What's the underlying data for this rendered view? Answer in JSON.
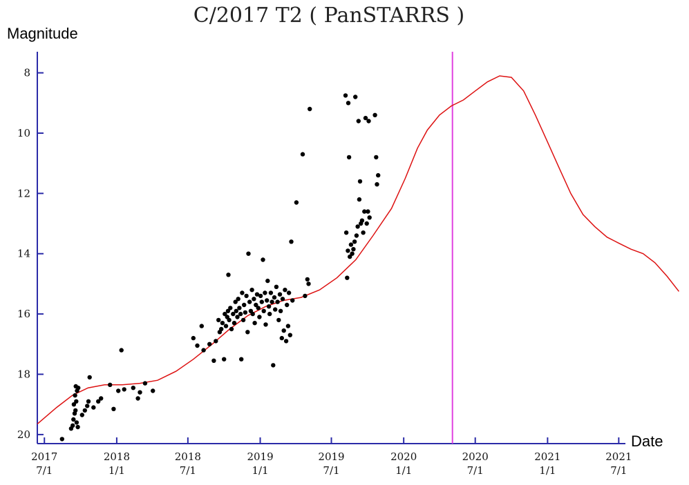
{
  "chart_data": {
    "type": "scatter",
    "title": "C/2017 T2 ( PanSTARRS )",
    "ylabel": "Magnitude",
    "xlabel": "Date",
    "y_inverted": true,
    "ylim": [
      20.3,
      7.3
    ],
    "xlim": [
      "2017-06-13",
      "2021-07-18"
    ],
    "y_ticks": [
      8,
      10,
      12,
      14,
      16,
      18,
      20
    ],
    "x_ticks": [
      {
        "date": "2017-07-01",
        "line1": "2017",
        "line2": "7/1"
      },
      {
        "date": "2018-01-01",
        "line1": "2018",
        "line2": "1/1"
      },
      {
        "date": "2018-07-01",
        "line1": "2018",
        "line2": "7/1"
      },
      {
        "date": "2019-01-01",
        "line1": "2019",
        "line2": "1/1"
      },
      {
        "date": "2019-07-01",
        "line1": "2019",
        "line2": "7/1"
      },
      {
        "date": "2020-01-01",
        "line1": "2020",
        "line2": "1/1"
      },
      {
        "date": "2020-07-01",
        "line1": "2020",
        "line2": "7/1"
      },
      {
        "date": "2021-01-01",
        "line1": "2021",
        "line2": "1/1"
      },
      {
        "date": "2021-07-01",
        "line1": "2021",
        "line2": "7/1"
      }
    ],
    "perihelion_marker": {
      "date": "2020-05-04",
      "color": "#e040e0"
    },
    "curve": {
      "color": "#dd1111",
      "points": [
        [
          "2017-06-13",
          19.65
        ],
        [
          "2017-08-01",
          19.1
        ],
        [
          "2017-09-10",
          18.7
        ],
        [
          "2017-10-20",
          18.45
        ],
        [
          "2017-12-01",
          18.35
        ],
        [
          "2018-01-15",
          18.35
        ],
        [
          "2018-03-01",
          18.3
        ],
        [
          "2018-04-15",
          18.2
        ],
        [
          "2018-06-01",
          17.9
        ],
        [
          "2018-07-15",
          17.5
        ],
        [
          "2018-09-01",
          17.0
        ],
        [
          "2018-10-15",
          16.5
        ],
        [
          "2018-12-01",
          16.05
        ],
        [
          "2019-01-15",
          15.75
        ],
        [
          "2019-03-01",
          15.55
        ],
        [
          "2019-04-15",
          15.45
        ],
        [
          "2019-06-01",
          15.2
        ],
        [
          "2019-07-15",
          14.8
        ],
        [
          "2019-09-01",
          14.2
        ],
        [
          "2019-10-15",
          13.4
        ],
        [
          "2019-12-01",
          12.5
        ],
        [
          "2020-01-05",
          11.5
        ],
        [
          "2020-02-05",
          10.5
        ],
        [
          "2020-03-01",
          9.9
        ],
        [
          "2020-04-01",
          9.4
        ],
        [
          "2020-05-01",
          9.1
        ],
        [
          "2020-06-01",
          8.9
        ],
        [
          "2020-07-01",
          8.6
        ],
        [
          "2020-08-01",
          8.3
        ],
        [
          "2020-09-01",
          8.1
        ],
        [
          "2020-10-01",
          8.15
        ],
        [
          "2020-11-01",
          8.6
        ],
        [
          "2020-12-01",
          9.4
        ],
        [
          "2021-01-01",
          10.3
        ],
        [
          "2021-02-01",
          11.2
        ],
        [
          "2021-03-01",
          12.0
        ],
        [
          "2021-04-01",
          12.7
        ],
        [
          "2021-05-01",
          13.1
        ],
        [
          "2021-06-01",
          13.45
        ],
        [
          "2021-07-01",
          13.65
        ],
        [
          "2021-08-01",
          13.85
        ],
        [
          "2021-09-01",
          14.0
        ],
        [
          "2021-10-01",
          14.3
        ],
        [
          "2021-11-01",
          14.75
        ],
        [
          "2021-12-01",
          15.25
        ]
      ]
    },
    "observations": [
      [
        "2017-08-15",
        20.15
      ],
      [
        "2017-09-07",
        19.8
      ],
      [
        "2017-09-11",
        19.7
      ],
      [
        "2017-09-13",
        19.5
      ],
      [
        "2017-09-16",
        19.3
      ],
      [
        "2017-09-18",
        19.2
      ],
      [
        "2017-09-14",
        19.0
      ],
      [
        "2017-09-20",
        18.9
      ],
      [
        "2017-09-17",
        18.7
      ],
      [
        "2017-09-22",
        18.55
      ],
      [
        "2017-09-19",
        18.4
      ],
      [
        "2017-09-25",
        18.45
      ],
      [
        "2017-09-21",
        19.6
      ],
      [
        "2017-09-24",
        19.75
      ],
      [
        "2017-10-05",
        19.35
      ],
      [
        "2017-10-12",
        19.2
      ],
      [
        "2017-10-18",
        19.05
      ],
      [
        "2017-10-21",
        18.9
      ],
      [
        "2017-10-24",
        18.1
      ],
      [
        "2017-11-03",
        19.1
      ],
      [
        "2017-11-15",
        18.9
      ],
      [
        "2017-11-22",
        18.8
      ],
      [
        "2017-12-15",
        18.35
      ],
      [
        "2017-12-24",
        19.15
      ],
      [
        "2018-01-05",
        18.55
      ],
      [
        "2018-01-13",
        17.2
      ],
      [
        "2018-01-20",
        18.5
      ],
      [
        "2018-02-12",
        18.45
      ],
      [
        "2018-02-24",
        18.8
      ],
      [
        "2018-03-01",
        18.6
      ],
      [
        "2018-03-14",
        18.3
      ],
      [
        "2018-04-03",
        18.55
      ],
      [
        "2018-07-15",
        16.8
      ],
      [
        "2018-07-25",
        17.05
      ],
      [
        "2018-08-05",
        16.4
      ],
      [
        "2018-08-10",
        17.2
      ],
      [
        "2018-08-25",
        17.0
      ],
      [
        "2018-09-05",
        17.55
      ],
      [
        "2018-09-10",
        16.9
      ],
      [
        "2018-09-17",
        16.2
      ],
      [
        "2018-09-20",
        16.6
      ],
      [
        "2018-09-24",
        16.5
      ],
      [
        "2018-09-27",
        16.3
      ],
      [
        "2018-10-01",
        17.5
      ],
      [
        "2018-10-03",
        16.0
      ],
      [
        "2018-10-06",
        16.4
      ],
      [
        "2018-10-09",
        16.1
      ],
      [
        "2018-10-11",
        15.9
      ],
      [
        "2018-10-12",
        14.7
      ],
      [
        "2018-10-14",
        16.2
      ],
      [
        "2018-10-17",
        15.8
      ],
      [
        "2018-10-20",
        16.5
      ],
      [
        "2018-10-24",
        16.0
      ],
      [
        "2018-10-27",
        16.3
      ],
      [
        "2018-10-30",
        15.6
      ],
      [
        "2018-11-01",
        15.9
      ],
      [
        "2018-11-04",
        16.1
      ],
      [
        "2018-11-06",
        15.5
      ],
      [
        "2018-11-09",
        15.8
      ],
      [
        "2018-11-12",
        16.0
      ],
      [
        "2018-11-14",
        17.5
      ],
      [
        "2018-11-16",
        15.3
      ],
      [
        "2018-11-19",
        16.2
      ],
      [
        "2018-11-21",
        15.7
      ],
      [
        "2018-11-24",
        15.95
      ],
      [
        "2018-11-27",
        15.4
      ],
      [
        "2018-11-30",
        16.6
      ],
      [
        "2018-12-02",
        14.0
      ],
      [
        "2018-12-05",
        15.6
      ],
      [
        "2018-12-08",
        15.9
      ],
      [
        "2018-12-11",
        15.2
      ],
      [
        "2018-12-13",
        16.0
      ],
      [
        "2018-12-16",
        15.5
      ],
      [
        "2018-12-18",
        16.3
      ],
      [
        "2018-12-21",
        15.7
      ],
      [
        "2018-12-24",
        15.35
      ],
      [
        "2018-12-27",
        15.8
      ],
      [
        "2018-12-30",
        16.1
      ],
      [
        "2019-01-02",
        15.4
      ],
      [
        "2019-01-05",
        15.6
      ],
      [
        "2019-01-08",
        14.2
      ],
      [
        "2019-01-10",
        15.9
      ],
      [
        "2019-01-13",
        15.3
      ],
      [
        "2019-01-15",
        16.35
      ],
      [
        "2019-01-18",
        15.55
      ],
      [
        "2019-01-20",
        14.9
      ],
      [
        "2019-01-23",
        15.75
      ],
      [
        "2019-01-25",
        16.0
      ],
      [
        "2019-01-28",
        15.3
      ],
      [
        "2019-01-31",
        15.6
      ],
      [
        "2019-02-03",
        17.7
      ],
      [
        "2019-02-06",
        15.45
      ],
      [
        "2019-02-08",
        15.85
      ],
      [
        "2019-02-11",
        15.1
      ],
      [
        "2019-02-14",
        15.6
      ],
      [
        "2019-02-17",
        16.2
      ],
      [
        "2019-02-20",
        15.35
      ],
      [
        "2019-02-22",
        15.9
      ],
      [
        "2019-02-25",
        16.8
      ],
      [
        "2019-02-27",
        15.5
      ],
      [
        "2019-03-02",
        16.55
      ],
      [
        "2019-03-05",
        15.2
      ],
      [
        "2019-03-08",
        16.9
      ],
      [
        "2019-03-10",
        15.7
      ],
      [
        "2019-03-13",
        16.4
      ],
      [
        "2019-03-15",
        15.3
      ],
      [
        "2019-03-18",
        16.7
      ],
      [
        "2019-03-21",
        13.6
      ],
      [
        "2019-03-24",
        15.55
      ],
      [
        "2019-04-03",
        12.3
      ],
      [
        "2019-04-19",
        10.7
      ],
      [
        "2019-04-25",
        15.4
      ],
      [
        "2019-05-01",
        14.85
      ],
      [
        "2019-05-04",
        15.0
      ],
      [
        "2019-05-07",
        9.2
      ],
      [
        "2019-08-06",
        8.75
      ],
      [
        "2019-08-08",
        13.3
      ],
      [
        "2019-08-10",
        14.8
      ],
      [
        "2019-08-12",
        13.9
      ],
      [
        "2019-08-13",
        9.0
      ],
      [
        "2019-08-15",
        10.8
      ],
      [
        "2019-08-17",
        14.1
      ],
      [
        "2019-08-20",
        13.7
      ],
      [
        "2019-08-23",
        14.0
      ],
      [
        "2019-08-26",
        13.85
      ],
      [
        "2019-08-29",
        13.6
      ],
      [
        "2019-08-31",
        8.8
      ],
      [
        "2019-09-03",
        13.4
      ],
      [
        "2019-09-06",
        13.1
      ],
      [
        "2019-09-08",
        9.6
      ],
      [
        "2019-09-10",
        12.2
      ],
      [
        "2019-09-12",
        11.6
      ],
      [
        "2019-09-14",
        13.0
      ],
      [
        "2019-09-17",
        12.9
      ],
      [
        "2019-09-20",
        13.3
      ],
      [
        "2019-09-23",
        12.6
      ],
      [
        "2019-09-26",
        9.5
      ],
      [
        "2019-09-29",
        13.0
      ],
      [
        "2019-10-02",
        12.6
      ],
      [
        "2019-10-04",
        9.6
      ],
      [
        "2019-10-06",
        12.8
      ],
      [
        "2019-10-20",
        9.4
      ],
      [
        "2019-10-23",
        10.8
      ],
      [
        "2019-10-25",
        11.7
      ],
      [
        "2019-10-28",
        11.4
      ]
    ]
  }
}
